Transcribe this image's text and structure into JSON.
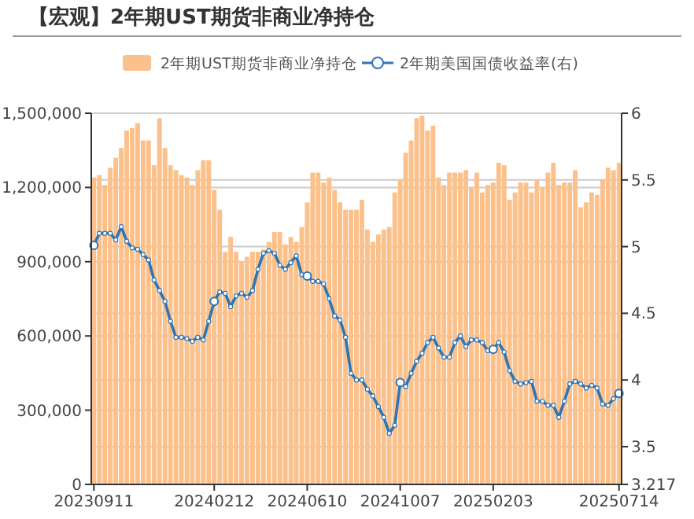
{
  "chart_data": {
    "type": "bar",
    "title": "【宏观】2年期UST期货非商业净持仓",
    "categories": [
      "20230911",
      null,
      null,
      null,
      null,
      null,
      null,
      null,
      null,
      null,
      null,
      null,
      null,
      null,
      null,
      null,
      null,
      null,
      null,
      null,
      null,
      null,
      "20240212",
      null,
      null,
      null,
      null,
      null,
      null,
      null,
      null,
      null,
      null,
      null,
      null,
      null,
      null,
      null,
      null,
      "20240610",
      null,
      null,
      null,
      null,
      null,
      null,
      null,
      null,
      null,
      null,
      null,
      null,
      null,
      null,
      null,
      null,
      "20241007",
      null,
      null,
      null,
      null,
      null,
      null,
      null,
      null,
      null,
      null,
      null,
      null,
      null,
      null,
      null,
      null,
      "20250203",
      null,
      null,
      null,
      null,
      null,
      null,
      null,
      null,
      null,
      null,
      null,
      null,
      null,
      null,
      null,
      null,
      null,
      null,
      null,
      null,
      null,
      null,
      "20250714"
    ],
    "series": [
      {
        "name": "2年期UST期货非商业净持仓",
        "color": "#fcc08a",
        "values": [
          1240000,
          1250000,
          1210000,
          1280000,
          1320000,
          1360000,
          1430000,
          1440000,
          1460000,
          1390000,
          1390000,
          1290000,
          1480000,
          1360000,
          1290000,
          1270000,
          1250000,
          1240000,
          1210000,
          1270000,
          1310000,
          1310000,
          1190000,
          1110000,
          940000,
          1000000,
          940000,
          900000,
          920000,
          940000,
          940000,
          950000,
          980000,
          1020000,
          1020000,
          970000,
          1000000,
          980000,
          1040000,
          1140000,
          1260000,
          1260000,
          1220000,
          1240000,
          1190000,
          1140000,
          1110000,
          1110000,
          1110000,
          1150000,
          1030000,
          980000,
          1010000,
          1030000,
          1040000,
          1180000,
          1230000,
          1340000,
          1390000,
          1480000,
          1490000,
          1430000,
          1450000,
          1240000,
          1210000,
          1260000,
          1260000,
          1260000,
          1270000,
          1200000,
          1260000,
          1180000,
          1210000,
          1220000,
          1300000,
          1290000,
          1150000,
          1180000,
          1220000,
          1220000,
          1180000,
          1230000,
          1200000,
          1260000,
          1300000,
          1210000,
          1220000,
          1220000,
          1270000,
          1120000,
          1140000,
          1180000,
          1170000,
          1230000,
          1280000,
          1270000,
          1300000
        ]
      },
      {
        "name": "2年期美国国债收益率(右)",
        "type": "line",
        "axis": "y2",
        "color": "#2e75b6",
        "values": [
          5.01,
          5.1,
          5.1,
          5.1,
          5.05,
          5.15,
          5.04,
          4.99,
          4.98,
          4.94,
          4.9,
          4.75,
          4.67,
          4.59,
          4.44,
          4.32,
          4.32,
          4.31,
          4.29,
          4.32,
          4.3,
          4.44,
          4.59,
          4.66,
          4.65,
          4.55,
          4.63,
          4.65,
          4.62,
          4.67,
          4.83,
          4.95,
          4.97,
          4.95,
          4.86,
          4.83,
          4.88,
          4.93,
          4.79,
          4.78,
          4.74,
          4.74,
          4.72,
          4.61,
          4.48,
          4.45,
          4.32,
          4.05,
          4.0,
          4.0,
          3.93,
          3.88,
          3.8,
          3.72,
          3.6,
          3.66,
          3.98,
          3.95,
          4.05,
          4.14,
          4.2,
          4.28,
          4.32,
          4.24,
          4.17,
          4.17,
          4.28,
          4.33,
          4.25,
          4.3,
          4.3,
          4.28,
          4.22,
          4.23,
          4.28,
          4.21,
          4.07,
          3.99,
          3.97,
          3.98,
          3.99,
          3.84,
          3.84,
          3.81,
          3.81,
          3.72,
          3.84,
          3.97,
          3.99,
          3.97,
          3.94,
          3.96,
          3.94,
          3.82,
          3.81,
          3.86,
          3.9
        ]
      }
    ],
    "ylim": [
      0,
      1500000
    ],
    "yticks": [
      0,
      {
        "value": 300000,
        "label": "300,000"
      },
      {
        "value": 600000,
        "label": "600,000"
      },
      {
        "value": 900000,
        "label": "900,000"
      },
      {
        "value": 1200000,
        "label": "1,200,000"
      },
      {
        "value": 1500000,
        "label": "1,500,000"
      }
    ],
    "y2lim": [
      3.217,
      6
    ],
    "y2ticks": [
      3.217,
      3.5,
      4,
      4.5,
      5,
      5.5,
      6
    ],
    "grid": "y",
    "legend": "top",
    "marker": "circle",
    "line_style": "solid"
  }
}
